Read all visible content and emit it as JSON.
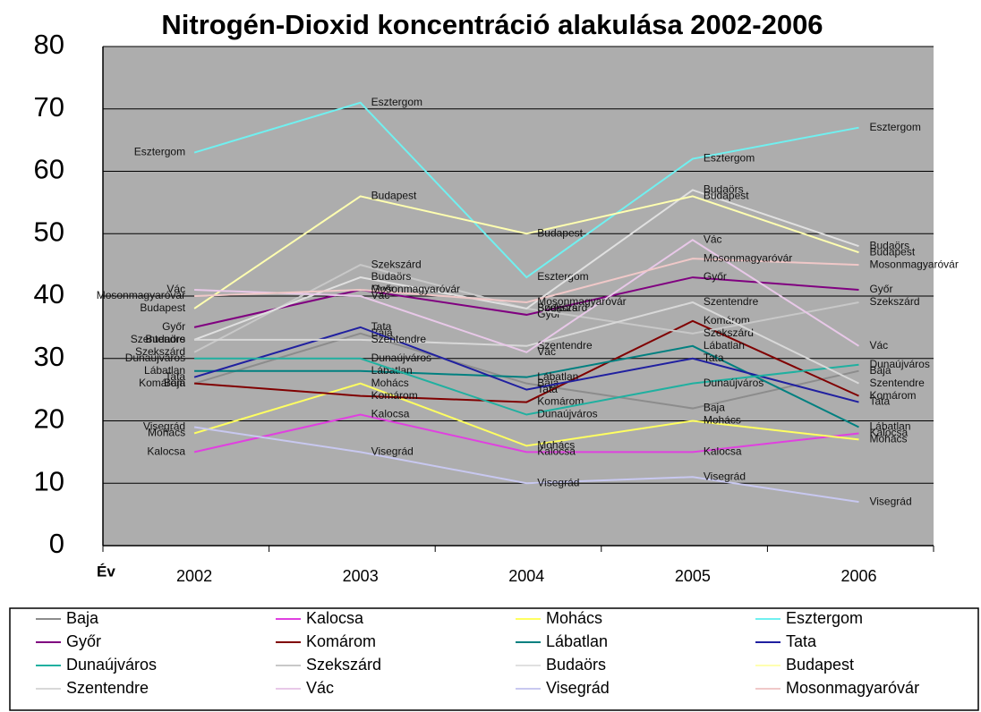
{
  "chart_data": {
    "type": "line",
    "title": "Nitrogén-Dioxid koncentráció alakulása 2002-2006",
    "x_label": "Év",
    "categories": [
      "2002",
      "2003",
      "2004",
      "2005",
      "2006"
    ],
    "ylim": [
      0,
      80
    ],
    "yticks": [
      0,
      10,
      20,
      30,
      40,
      50,
      60,
      70,
      80
    ],
    "grid": true,
    "series": [
      {
        "name": "Baja",
        "color": "#8c8c8c",
        "values": [
          26,
          34,
          26,
          22,
          28
        ]
      },
      {
        "name": "Kalocsa",
        "color": "#e040e0",
        "values": [
          15,
          21,
          15,
          15,
          18
        ]
      },
      {
        "name": "Mohács",
        "color": "#ffff60",
        "values": [
          18,
          26,
          16,
          20,
          17
        ]
      },
      {
        "name": "Esztergom",
        "color": "#70f0f0",
        "values": [
          63,
          71,
          43,
          62,
          67
        ]
      },
      {
        "name": "Győr",
        "color": "#800080",
        "values": [
          35,
          41,
          37,
          43,
          41
        ]
      },
      {
        "name": "Komárom",
        "color": "#800000",
        "values": [
          26,
          24,
          23,
          36,
          24
        ]
      },
      {
        "name": "Lábatlan",
        "color": "#008080",
        "values": [
          28,
          28,
          27,
          32,
          19
        ]
      },
      {
        "name": "Tata",
        "color": "#2020a0",
        "values": [
          27,
          35,
          25,
          30,
          23
        ]
      },
      {
        "name": "Dunaújváros",
        "color": "#20b0a0",
        "values": [
          30,
          30,
          21,
          26,
          29
        ]
      },
      {
        "name": "Szekszárd",
        "color": "#c8c8c8",
        "values": [
          31,
          45,
          38,
          34,
          39
        ]
      },
      {
        "name": "Budaörs",
        "color": "#e0e0e0",
        "values": [
          33,
          43,
          38,
          57,
          48
        ]
      },
      {
        "name": "Budapest",
        "color": "#ffffb0",
        "values": [
          38,
          56,
          50,
          56,
          47
        ]
      },
      {
        "name": "Szentendre",
        "color": "#d8d8d8",
        "values": [
          33,
          33,
          32,
          39,
          26
        ]
      },
      {
        "name": "Vác",
        "color": "#e8c8e8",
        "values": [
          41,
          40,
          31,
          49,
          32
        ]
      },
      {
        "name": "Visegrád",
        "color": "#c8c8f0",
        "values": [
          19,
          15,
          10,
          11,
          7
        ]
      },
      {
        "name": "Mosonmagyaróvár",
        "color": "#f0c8c8",
        "values": [
          40,
          41,
          39,
          46,
          45
        ]
      }
    ]
  }
}
